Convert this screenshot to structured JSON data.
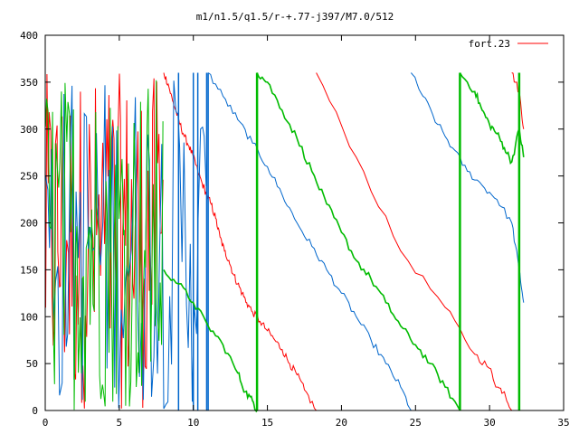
{
  "chart_data": {
    "type": "line",
    "title": "m1/n1.5/q1.5/r-+.77-j397/M7.0/512",
    "xlabel": "",
    "ylabel": "",
    "xlim": [
      0,
      35
    ],
    "ylim": [
      0,
      400
    ],
    "x_ticks": [
      0,
      5,
      10,
      15,
      20,
      25,
      30,
      35
    ],
    "y_ticks": [
      0,
      50,
      100,
      150,
      200,
      250,
      300,
      350,
      400
    ],
    "grid": false,
    "legend": {
      "placement": "top-right",
      "entries": [
        {
          "label": "fort.23",
          "color": "#ff0000"
        }
      ]
    },
    "series": [
      {
        "name": "fort.23",
        "color": "#ff0000",
        "segments": [
          [
            [
              8.0,
              360
            ],
            [
              8.3,
              348
            ],
            [
              8.6,
              330
            ],
            [
              8.85,
              318
            ],
            [
              9.1,
              305
            ],
            [
              9.4,
              292
            ],
            [
              9.7,
              282
            ],
            [
              10.0,
              270
            ],
            [
              10.3,
              255
            ],
            [
              10.6,
              242
            ],
            [
              10.9,
              230
            ],
            [
              11.2,
              220
            ],
            [
              11.5,
              205
            ],
            [
              11.8,
              185
            ],
            [
              12.1,
              170
            ],
            [
              12.4,
              160
            ],
            [
              12.7,
              145
            ],
            [
              13.0,
              135
            ],
            [
              13.3,
              125
            ],
            [
              13.6,
              115
            ],
            [
              14.0,
              105
            ],
            [
              14.5,
              95
            ],
            [
              15.0,
              85
            ],
            [
              15.5,
              75
            ],
            [
              16.0,
              65
            ],
            [
              16.5,
              50
            ],
            [
              17.0,
              38
            ],
            [
              17.5,
              22
            ],
            [
              18.3,
              0
            ]
          ],
          [
            [
              18.3,
              360
            ],
            [
              21.0,
              270
            ],
            [
              24.0,
              170
            ],
            [
              27.0,
              110
            ],
            [
              29.0,
              60
            ],
            [
              30.0,
              45
            ],
            [
              30.5,
              25
            ],
            [
              31.0,
              20
            ],
            [
              31.5,
              0
            ]
          ],
          [
            [
              31.5,
              360
            ],
            [
              32.0,
              340
            ],
            [
              32.3,
              300
            ]
          ]
        ],
        "noise_region": {
          "x": [
            0,
            8
          ],
          "y": [
            0,
            360
          ],
          "lines": 95
        }
      },
      {
        "color": "#0066cc",
        "segments": [
          [
            [
              11.0,
              360
            ],
            [
              12.0,
              335
            ],
            [
              13.0,
              310
            ],
            [
              14.0,
              285
            ],
            [
              15.0,
              260
            ],
            [
              16.0,
              230
            ],
            [
              17.0,
              200
            ],
            [
              18.0,
              175
            ],
            [
              19.0,
              150
            ],
            [
              20.0,
              125
            ],
            [
              21.0,
              100
            ],
            [
              22.0,
              75
            ],
            [
              23.0,
              50
            ],
            [
              24.0,
              25
            ],
            [
              24.7,
              0
            ]
          ],
          [
            [
              24.7,
              360
            ],
            [
              25.5,
              335
            ],
            [
              26.5,
              305
            ],
            [
              27.5,
              280
            ],
            [
              28.5,
              255
            ],
            [
              29.5,
              240
            ],
            [
              30.5,
              225
            ],
            [
              31.5,
              200
            ],
            [
              32.0,
              150
            ],
            [
              32.3,
              115
            ]
          ]
        ],
        "spikes": [
          9.0,
          10.0,
          10.3,
          10.9,
          11.0
        ],
        "noise_region": {
          "x": [
            0,
            11
          ],
          "y": [
            0,
            360
          ],
          "lines": 80
        }
      },
      {
        "color": "#00bb00",
        "segments": [
          [
            [
              8.0,
              150
            ],
            [
              9.0,
              135
            ],
            [
              10.0,
              115
            ],
            [
              11.0,
              90
            ],
            [
              12.0,
              70
            ],
            [
              13.0,
              40
            ],
            [
              13.5,
              20
            ],
            [
              14.0,
              10
            ],
            [
              14.3,
              0
            ]
          ],
          [
            [
              14.3,
              360
            ],
            [
              15.0,
              350
            ],
            [
              16.0,
              320
            ],
            [
              17.0,
              290
            ],
            [
              18.0,
              255
            ],
            [
              19.0,
              220
            ],
            [
              20.0,
              190
            ],
            [
              21.0,
              160
            ],
            [
              22.0,
              140
            ],
            [
              23.0,
              115
            ],
            [
              24.0,
              90
            ],
            [
              25.0,
              70
            ],
            [
              26.0,
              50
            ],
            [
              27.0,
              25
            ],
            [
              28.0,
              0
            ]
          ],
          [
            [
              28.0,
              360
            ],
            [
              29.0,
              340
            ],
            [
              29.5,
              320
            ],
            [
              30.0,
              305
            ],
            [
              30.5,
              295
            ],
            [
              31.0,
              280
            ],
            [
              31.5,
              265
            ],
            [
              32.0,
              300
            ],
            [
              32.3,
              270
            ]
          ]
        ],
        "spikes": [
          14.3,
          28.0,
          32.0
        ],
        "noise_region": {
          "x": [
            0,
            8
          ],
          "y": [
            0,
            360
          ],
          "lines": 90
        }
      }
    ]
  }
}
